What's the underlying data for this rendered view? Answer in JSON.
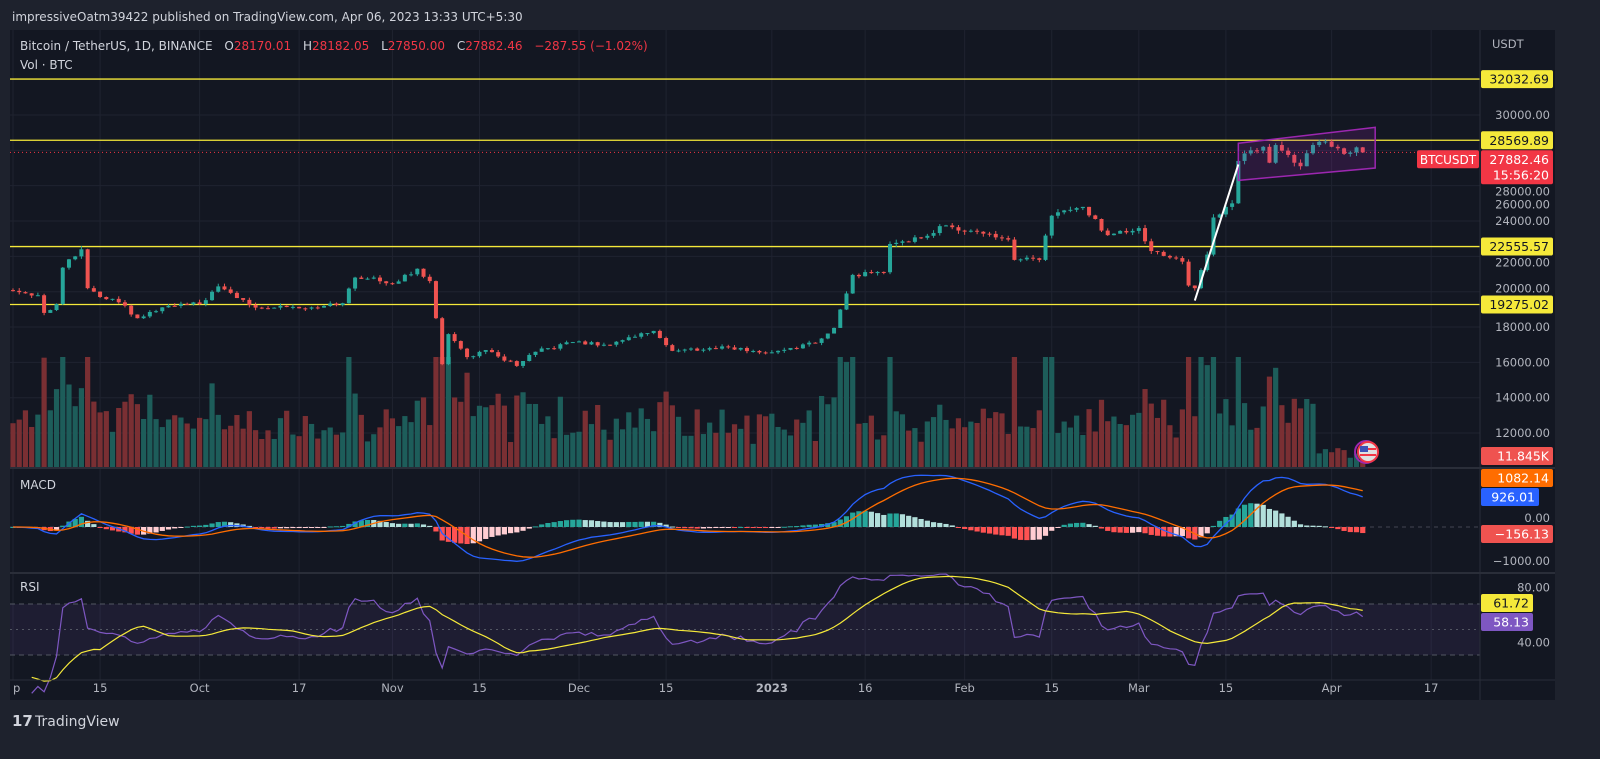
{
  "publish_line": "impressiveOatm39422 published on TradingView.com, Apr 06, 2023 13:33 UTC+5:30",
  "legend": {
    "symbol": "Bitcoin / TetherUS, 1D, BINANCE",
    "o_label": "O",
    "o": "28170.01",
    "h_label": "H",
    "h": "28182.05",
    "l_label": "L",
    "l": "27850.00",
    "c_label": "C",
    "c": "27882.46",
    "change": "−287.55 (−1.02%)",
    "vol": "Vol · BTC"
  },
  "indicators": {
    "macd": "MACD",
    "rsi": "RSI"
  },
  "footer": {
    "brand": "TradingView"
  },
  "colors": {
    "up": "#26a69a",
    "down": "#ef5350",
    "level": "#f5e93a",
    "channel": "#9c27b0",
    "macd": "#2962ff",
    "signal": "#ff6d00",
    "rsi": "#7e57c2",
    "rsi_ma": "#f5e93a"
  },
  "chart_data": {
    "type": "candlestick",
    "title": "Bitcoin / TetherUS, 1D, BINANCE",
    "currency": "USDT",
    "start_date": "2022-09-01",
    "end_date": "2023-04-06",
    "close_keypoints": [
      [
        "2022-09-01",
        20050
      ],
      [
        "2022-09-05",
        19800
      ],
      [
        "2022-09-06",
        18800
      ],
      [
        "2022-09-08",
        19300
      ],
      [
        "2022-09-09",
        21360
      ],
      [
        "2022-09-12",
        22400
      ],
      [
        "2022-09-13",
        20200
      ],
      [
        "2022-09-15",
        19700
      ],
      [
        "2022-09-18",
        19400
      ],
      [
        "2022-09-21",
        18500
      ],
      [
        "2022-09-26",
        19200
      ],
      [
        "2022-10-01",
        19300
      ],
      [
        "2022-10-04",
        20300
      ],
      [
        "2022-10-10",
        19100
      ],
      [
        "2022-10-14",
        19200
      ],
      [
        "2022-10-20",
        19100
      ],
      [
        "2022-10-24",
        19350
      ],
      [
        "2022-10-26",
        20800
      ],
      [
        "2022-10-29",
        20800
      ],
      [
        "2022-11-01",
        20450
      ],
      [
        "2022-11-05",
        21300
      ],
      [
        "2022-11-07",
        20600
      ],
      [
        "2022-11-08",
        18500
      ],
      [
        "2022-11-09",
        15900
      ],
      [
        "2022-11-10",
        17600
      ],
      [
        "2022-11-13",
        16300
      ],
      [
        "2022-11-16",
        16700
      ],
      [
        "2022-11-21",
        15800
      ],
      [
        "2022-11-24",
        16600
      ],
      [
        "2022-11-30",
        17150
      ],
      [
        "2022-12-05",
        17000
      ],
      [
        "2022-12-13",
        17780
      ],
      [
        "2022-12-16",
        16650
      ],
      [
        "2022-12-25",
        16850
      ],
      [
        "2022-12-31",
        16550
      ],
      [
        "2023-01-08",
        17100
      ],
      [
        "2023-01-11",
        17950
      ],
      [
        "2023-01-13",
        19900
      ],
      [
        "2023-01-14",
        20950
      ],
      [
        "2023-01-19",
        21100
      ],
      [
        "2023-01-20",
        22700
      ],
      [
        "2023-01-25",
        23050
      ],
      [
        "2023-01-29",
        23750
      ],
      [
        "2023-02-02",
        23450
      ],
      [
        "2023-02-08",
        22950
      ],
      [
        "2023-02-09",
        21800
      ],
      [
        "2023-02-13",
        21800
      ],
      [
        "2023-02-15",
        24300
      ],
      [
        "2023-02-17",
        24600
      ],
      [
        "2023-02-20",
        24800
      ],
      [
        "2023-02-24",
        23200
      ],
      [
        "2023-03-01",
        23600
      ],
      [
        "2023-03-03",
        22300
      ],
      [
        "2023-03-08",
        21700
      ],
      [
        "2023-03-09",
        20350
      ],
      [
        "2023-03-10",
        20200
      ],
      [
        "2023-03-12",
        22100
      ],
      [
        "2023-03-13",
        24200
      ],
      [
        "2023-03-16",
        25000
      ],
      [
        "2023-03-17",
        27400
      ],
      [
        "2023-03-19",
        28000
      ],
      [
        "2023-03-21",
        28200
      ],
      [
        "2023-03-22",
        27300
      ],
      [
        "2023-03-23",
        28300
      ],
      [
        "2023-03-27",
        27100
      ],
      [
        "2023-03-29",
        28300
      ],
      [
        "2023-03-31",
        28500
      ],
      [
        "2023-04-03",
        27800
      ],
      [
        "2023-04-05",
        28170
      ],
      [
        "2023-04-06",
        27882.46
      ]
    ],
    "levels": [
      {
        "price": 32032.69,
        "label": "32032.69"
      },
      {
        "price": 28569.89,
        "label": "28569.89"
      },
      {
        "price": 22555.57,
        "label": "22555.57"
      },
      {
        "price": 19275.02,
        "label": "19275.02"
      }
    ],
    "last_price": {
      "symbol": "BTCUSDT",
      "price": 27882.46,
      "label": "27882.46",
      "countdown": "15:56:20"
    },
    "trendline": {
      "from": [
        "2023-03-10",
        19500
      ],
      "to": [
        "2023-03-17",
        27200
      ]
    },
    "channel": {
      "start": "2023-03-17",
      "end": "2023-04-08",
      "upper": [
        28400,
        29300
      ],
      "lower": [
        26300,
        27000
      ]
    },
    "price_ticks": [
      "30000.00",
      "28000.00",
      "26000.00",
      "24000.00",
      "22000.00",
      "20000.00",
      "18000.00",
      "16000.00",
      "14000.00",
      "12000.00"
    ],
    "volume_label": "11.845K",
    "macd": {
      "macd_label": "926.01",
      "signal_label": "1082.14",
      "hist_label": "−156.13",
      "ticks": [
        "0.00",
        "−1000.00"
      ]
    },
    "rsi": {
      "rsi_label": "58.13",
      "ma_label": "61.72",
      "ticks": [
        "80.00",
        "40.00"
      ],
      "bands": [
        70,
        50,
        30
      ]
    },
    "x_ticks": [
      [
        "2022-09-01",
        "p"
      ],
      [
        "2022-09-15",
        "15"
      ],
      [
        "2022-10-01",
        "Oct"
      ],
      [
        "2022-10-17",
        "17"
      ],
      [
        "2022-11-01",
        "Nov"
      ],
      [
        "2022-11-15",
        "15"
      ],
      [
        "2022-12-01",
        "Dec"
      ],
      [
        "2022-12-15",
        "15"
      ],
      [
        "2023-01-01",
        "2023"
      ],
      [
        "2023-01-16",
        "16"
      ],
      [
        "2023-02-01",
        "Feb"
      ],
      [
        "2023-02-15",
        "15"
      ],
      [
        "2023-03-01",
        "Mar"
      ],
      [
        "2023-03-15",
        "15"
      ],
      [
        "2023-04-01",
        "Apr"
      ],
      [
        "2023-04-17",
        "17"
      ]
    ]
  }
}
